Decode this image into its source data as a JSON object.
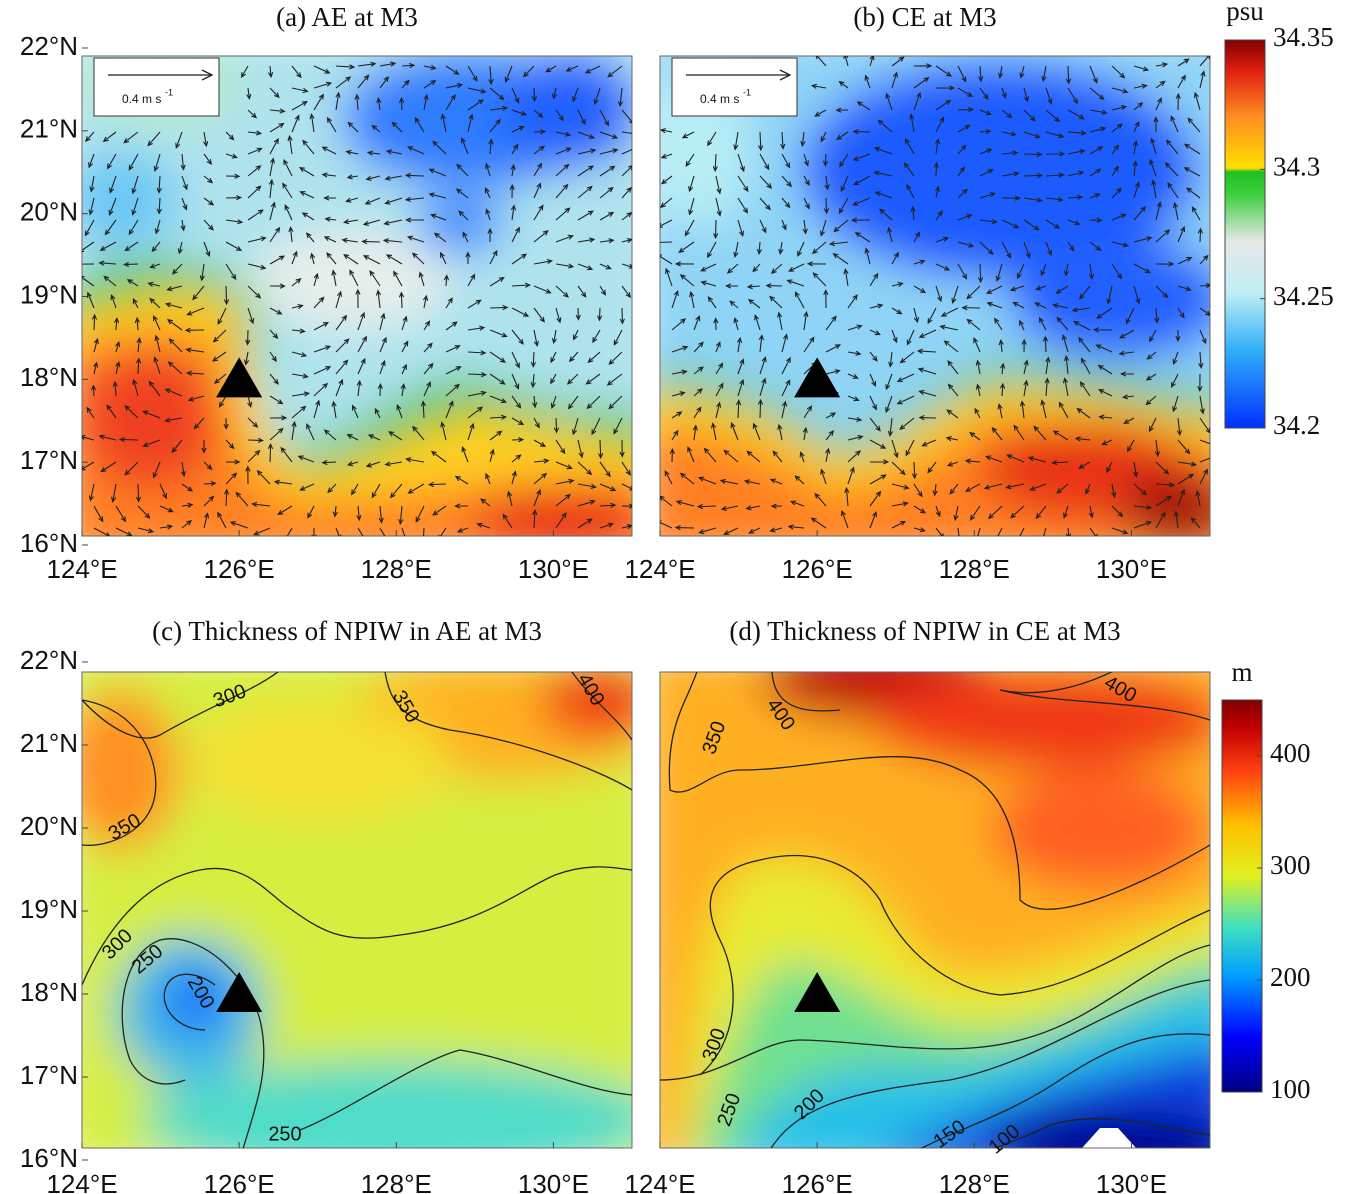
{
  "chart_data": [
    {
      "type": "vector-map",
      "title": "(a) AE at M3",
      "xlim": [
        124,
        131
      ],
      "ylim": [
        16,
        22
      ],
      "xticks": [
        {
          "value": 124,
          "label": "124°E"
        },
        {
          "value": 126,
          "label": "126°E"
        },
        {
          "value": 128,
          "label": "128°E"
        },
        {
          "value": 130,
          "label": "130°E"
        }
      ],
      "yticks": [
        {
          "value": 16,
          "label": "16°N"
        },
        {
          "value": 17,
          "label": "17°N"
        },
        {
          "value": 18,
          "label": "18°N"
        },
        {
          "value": 19,
          "label": "19°N"
        },
        {
          "value": 20,
          "label": "20°N"
        },
        {
          "value": 21,
          "label": "21°N"
        },
        {
          "value": 22,
          "label": "22°N"
        }
      ],
      "vector_key": {
        "text": "0.4 m s",
        "exponent": "-1"
      },
      "site": {
        "x": 126,
        "y": 18
      }
    },
    {
      "type": "vector-map",
      "title": "(b) CE at M3",
      "xlim": [
        124,
        131
      ],
      "ylim": [
        16,
        22
      ],
      "xticks": [
        {
          "value": 124,
          "label": "124°E"
        },
        {
          "value": 126,
          "label": "126°E"
        },
        {
          "value": 128,
          "label": "128°E"
        },
        {
          "value": 130,
          "label": "130°E"
        }
      ],
      "vector_key": {
        "text": "0.4 m s",
        "exponent": "-1"
      },
      "site": {
        "x": 126,
        "y": 18
      },
      "colorbar": {
        "label": "psu",
        "lim": [
          34.2,
          34.35
        ],
        "ticks": [
          34.2,
          34.25,
          34.3,
          34.35
        ]
      }
    },
    {
      "type": "contour-map",
      "title": "(c) Thickness of NPIW in AE at M3",
      "xlim": [
        124,
        131
      ],
      "ylim": [
        16,
        22
      ],
      "xticks": [
        {
          "value": 124,
          "label": "124°E"
        },
        {
          "value": 126,
          "label": "126°E"
        },
        {
          "value": 128,
          "label": "128°E"
        },
        {
          "value": 130,
          "label": "130°E"
        }
      ],
      "yticks": [
        {
          "value": 16,
          "label": "16°N"
        },
        {
          "value": 17,
          "label": "17°N"
        },
        {
          "value": 18,
          "label": "18°N"
        },
        {
          "value": 19,
          "label": "19°N"
        },
        {
          "value": 20,
          "label": "20°N"
        },
        {
          "value": 21,
          "label": "21°N"
        },
        {
          "value": 22,
          "label": "22°N"
        }
      ],
      "contours": [
        300,
        350,
        400,
        350,
        300,
        250,
        200,
        250
      ],
      "site": {
        "x": 126,
        "y": 18
      }
    },
    {
      "type": "contour-map",
      "title": "(d) Thickness of NPIW in CE at M3",
      "xlim": [
        124,
        131
      ],
      "ylim": [
        16,
        22
      ],
      "xticks": [
        {
          "value": 124,
          "label": "124°E"
        },
        {
          "value": 126,
          "label": "126°E"
        },
        {
          "value": 128,
          "label": "128°E"
        },
        {
          "value": 130,
          "label": "130°E"
        }
      ],
      "contours": [
        350,
        400,
        400,
        300,
        250,
        200,
        150,
        100
      ],
      "site": {
        "x": 126,
        "y": 18
      },
      "colorbar": {
        "label": "m",
        "lim": [
          100,
          450
        ],
        "ticks": [
          100,
          200,
          300,
          400
        ]
      }
    }
  ]
}
